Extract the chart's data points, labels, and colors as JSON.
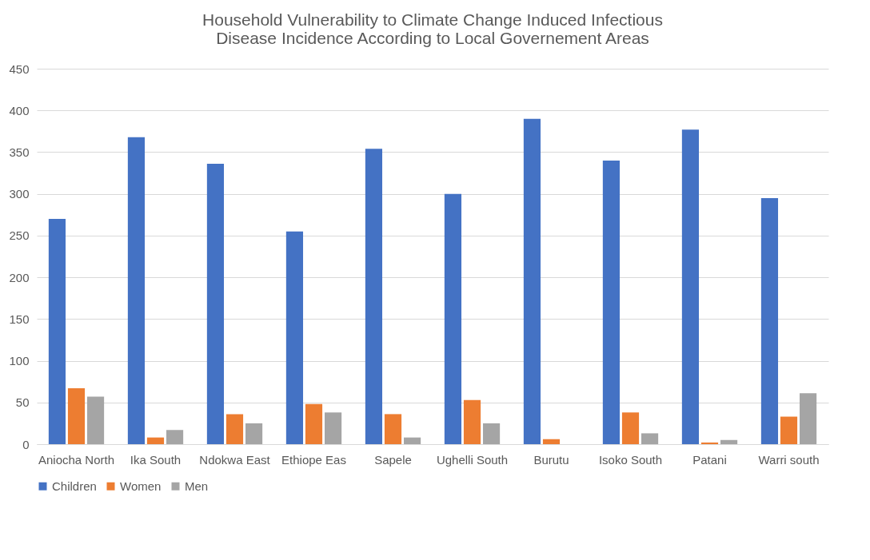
{
  "chart_data": {
    "type": "bar",
    "title": "Household Vulnerability to Climate Change Induced Infectious Disease Incidence According to Local Governement Areas",
    "categories": [
      "Aniocha North",
      "Ika South",
      "Ndokwa East",
      "Ethiope Eas",
      "Sapele",
      "Ughelli South",
      "Burutu",
      "Isoko South",
      "Patani",
      "Warri south"
    ],
    "series": [
      {
        "name": "Children",
        "color": "#4472c4",
        "values": [
          270,
          368,
          336,
          255,
          354,
          300,
          390,
          340,
          377,
          295
        ]
      },
      {
        "name": "Women",
        "color": "#ed7d31",
        "values": [
          67,
          8,
          36,
          48,
          36,
          53,
          6,
          38,
          2,
          33
        ]
      },
      {
        "name": "Men",
        "color": "#a5a5a5",
        "values": [
          57,
          17,
          25,
          38,
          8,
          25,
          0,
          13,
          5,
          61
        ]
      }
    ],
    "ylim": [
      0,
      450
    ],
    "yticks": [
      0,
      50,
      100,
      150,
      200,
      250,
      300,
      350,
      400,
      450
    ],
    "grid": "y",
    "legend": "bottom"
  }
}
